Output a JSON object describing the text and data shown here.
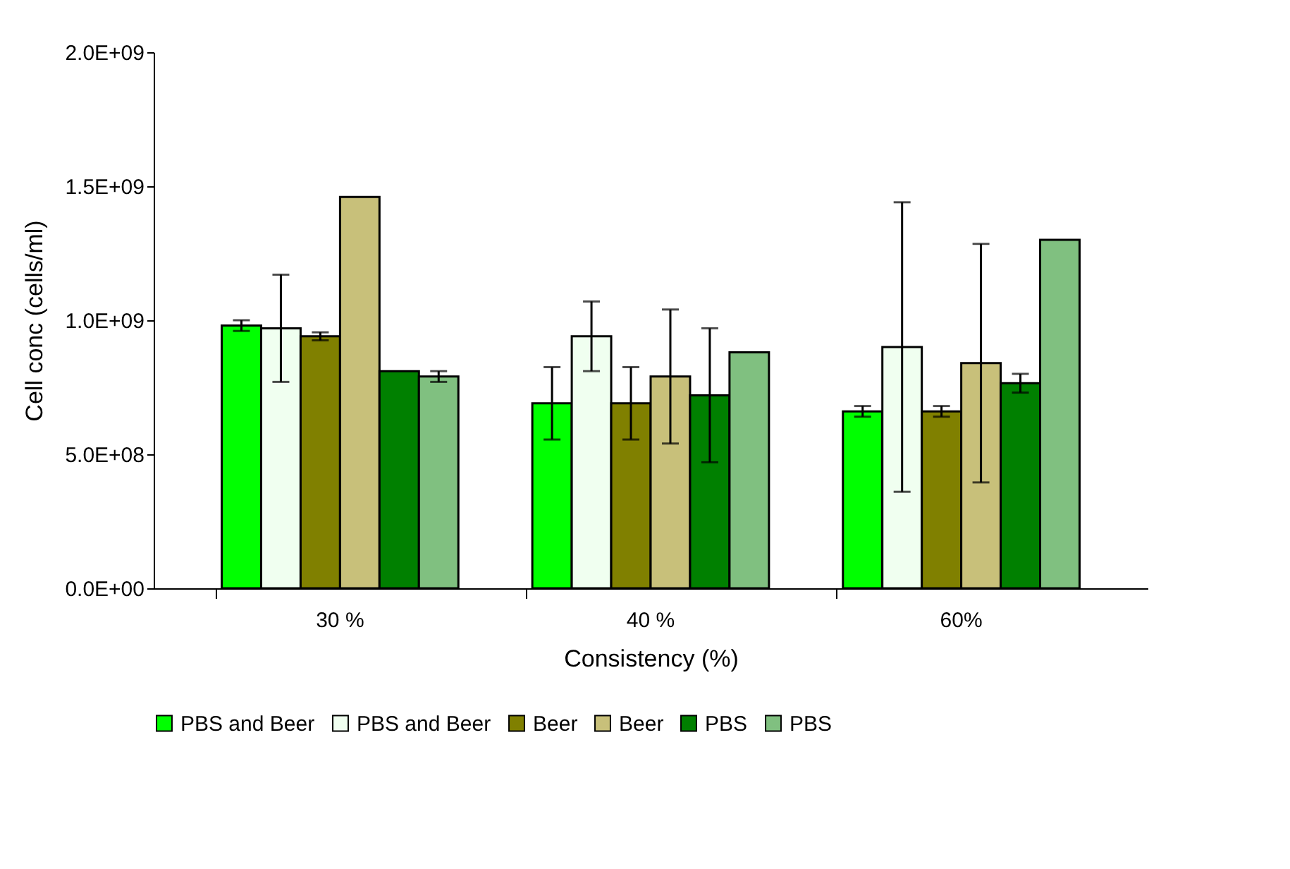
{
  "chart_data": {
    "type": "bar",
    "xlabel": "Consistency (%)",
    "ylabel": "Cell conc (cells/ml)",
    "categories": [
      "30 %",
      "40 %",
      "60%"
    ],
    "series": [
      {
        "name": "PBS and Beer",
        "color": "#00ff00",
        "values": [
          980000000,
          690000000,
          660000000
        ],
        "errors": [
          20000000,
          135000000,
          20000000
        ]
      },
      {
        "name": "PBS and Beer",
        "color": "#f0fff0",
        "values": [
          970000000,
          940000000,
          900000000
        ],
        "errors": [
          200000000,
          130000000,
          540000000
        ]
      },
      {
        "name": "Beer",
        "color": "#808000",
        "values": [
          940000000,
          690000000,
          660000000
        ],
        "errors": [
          15000000,
          135000000,
          20000000
        ]
      },
      {
        "name": "Beer",
        "color": "#c8c07a",
        "values": [
          1460000000,
          790000000,
          840000000
        ],
        "errors": [
          null,
          250000000,
          445000000
        ]
      },
      {
        "name": "PBS",
        "color": "#008000",
        "values": [
          810000000,
          720000000,
          765000000
        ],
        "errors": [
          null,
          250000000,
          35000000
        ]
      },
      {
        "name": "PBS",
        "color": "#80c080",
        "values": [
          790000000,
          880000000,
          1300000000
        ],
        "errors": [
          20000000,
          null,
          null
        ]
      }
    ],
    "ylim": [
      0,
      2000000000
    ],
    "yticks": [
      {
        "value": 0,
        "label": "0.0E+00"
      },
      {
        "value": 500000000,
        "label": "5.0E+08"
      },
      {
        "value": 1000000000,
        "label": "1.0E+09"
      },
      {
        "value": 1500000000,
        "label": "1.5E+09"
      },
      {
        "value": 2000000000,
        "label": "2.0E+09"
      }
    ],
    "grid": false,
    "legend": "bottom"
  }
}
